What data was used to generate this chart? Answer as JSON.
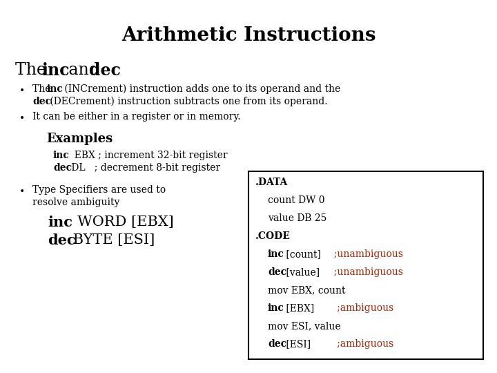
{
  "title": "Arithmetic Instructions",
  "bg_color": "#ffffff",
  "black": "#000000",
  "red": "#aa2200",
  "subtitle_normal": "The ",
  "subtitle_bold1": "inc",
  "subtitle_and": " and ",
  "subtitle_bold2": "dec",
  "b1_the": "The ",
  "b1_inc": "inc",
  "b1_rest1": " (INCrement) instruction adds one to its operand and the",
  "b1_dec": "dec",
  "b1_rest2": " (DECrement) instruction subtracts one from its operand.",
  "b2": "It can be either in a register or in memory.",
  "ex_title": "Examples",
  "ex1_kw": "inc",
  "ex1_rest": "  EBX ; increment 32-bit register",
  "ex2_kw": "dec",
  "ex2_rest": " DL   ; decrement 8-bit register",
  "b3_line1": "Type Specifiers are used to",
  "b3_line2": "resolve ambiguity",
  "le1_kw": "inc",
  "le1_rest": "  WORD [EBX]",
  "le2_kw": "dec",
  "le2_rest": " BYTE [ESI]",
  "box_line0": ".DATA",
  "box_line1": "    count DW 0",
  "box_line2": "    value DB 25",
  "box_line3": ".CODE",
  "box_line4a": "    inc",
  "box_line4b": " [count]   ",
  "box_line4c": ";unambiguous",
  "box_line5a": "    dec",
  "box_line5b": " [value]  ",
  "box_line5c": ";unambiguous",
  "box_line6": "    mov EBX, count",
  "box_line7a": "    inc",
  "box_line7b": " [EBX]   ",
  "box_line7c": ";ambiguous",
  "box_line8": "    mov ESI, value",
  "box_line9a": "    dec",
  "box_line9b": " [ESI]   ",
  "box_line9c": ";ambiguous"
}
